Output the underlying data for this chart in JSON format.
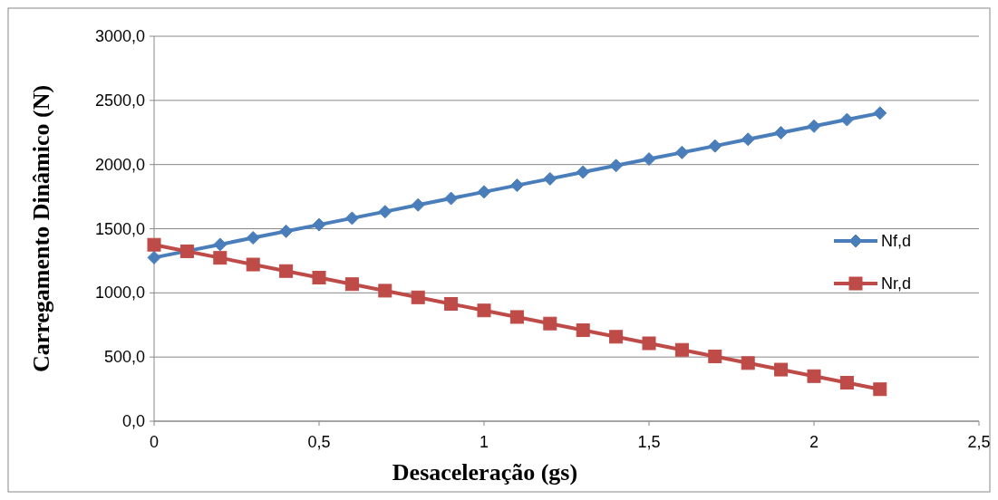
{
  "chart_data": {
    "type": "line",
    "xlabel": "Desaceleração (gs)",
    "ylabel": "Carregamento Dinâmico (N)",
    "x": [
      0,
      0.1,
      0.2,
      0.3,
      0.4,
      0.5,
      0.6,
      0.7,
      0.8,
      0.9,
      1,
      1.1,
      1.2,
      1.3,
      1.4,
      1.5,
      1.6,
      1.7,
      1.8,
      1.9,
      2,
      2.1,
      2.2
    ],
    "series": [
      {
        "name": "Nf,d",
        "color": "#4a7ebb",
        "marker": "diamond",
        "values": [
          1275,
          1326,
          1377,
          1429,
          1480,
          1531,
          1582,
          1633,
          1685,
          1736,
          1787,
          1838,
          1889,
          1941,
          1992,
          2043,
          2094,
          2145,
          2197,
          2248,
          2299,
          2350,
          2401
        ]
      },
      {
        "name": "Nr,d",
        "color": "#be4b48",
        "marker": "square",
        "values": [
          1375,
          1324,
          1273,
          1221,
          1170,
          1119,
          1068,
          1017,
          965,
          914,
          863,
          812,
          761,
          709,
          658,
          607,
          556,
          505,
          453,
          402,
          351,
          300,
          249
        ]
      }
    ],
    "xlim": [
      0,
      2.5
    ],
    "xticks": [
      0,
      {
        "value": 0.5,
        "label": "0,5"
      },
      1,
      {
        "value": 1.5,
        "label": "1,5"
      },
      2,
      {
        "value": 2.5,
        "label": "2,5"
      }
    ],
    "ylim": [
      0,
      3000
    ],
    "yticks": [
      {
        "value": 0,
        "label": "0,0"
      },
      {
        "value": 500,
        "label": "500,0"
      },
      {
        "value": 1000,
        "label": "1000,0"
      },
      {
        "value": 1500,
        "label": "1500,0"
      },
      {
        "value": 2000,
        "label": "2000,0"
      },
      {
        "value": 2500,
        "label": "2500,0"
      },
      {
        "value": 3000,
        "label": "3000,0"
      }
    ],
    "grid": "y",
    "legend": "right",
    "line_style": "solid"
  }
}
